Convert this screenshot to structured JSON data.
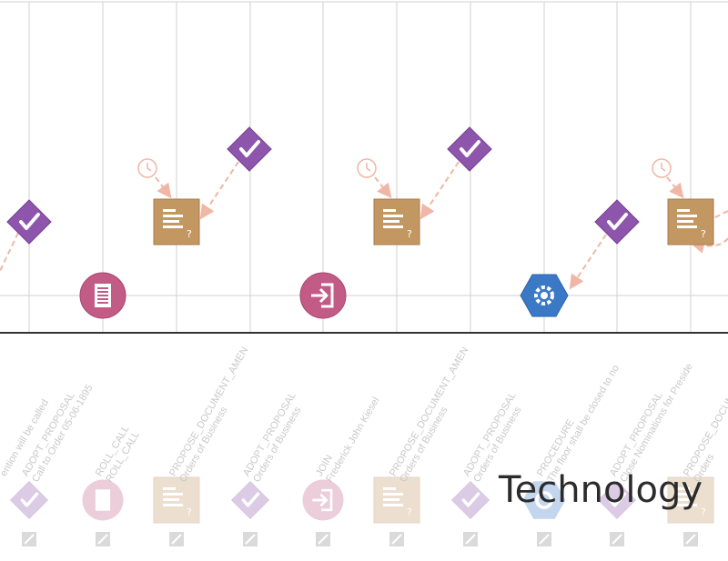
{
  "watermark": "Technology",
  "colors": {
    "vote": "#8e55ac",
    "document": "#c29762",
    "rollcall": "#c35b87",
    "procedure": "#3b79c7",
    "timer": "#f0b6a6"
  },
  "columns": [
    {
      "line1": "",
      "line2": "ention will be called",
      "icon": "vote-icon"
    },
    {
      "line1": "ADOPT_PROPOSAL",
      "line2": "Call to Order 05-06-1895",
      "icon": "vote-icon"
    },
    {
      "line1": "ROLL_CALL",
      "line2": "ROLL_CALL",
      "icon": "roll-call-icon"
    },
    {
      "line1": "PROPOSE_DOCUMENT_AMEN",
      "line2": "Orders of Business",
      "icon": "document-icon"
    },
    {
      "line1": "ADOPT_PROPOSAL",
      "line2": "Orders of Business",
      "icon": "vote-icon"
    },
    {
      "line1": "JOIN",
      "line2": "Frederick John Kiesel",
      "icon": "join-icon"
    },
    {
      "line1": "PROPOSE_DOCUMENT_AMEN",
      "line2": "Orders of Business",
      "icon": "document-icon"
    },
    {
      "line1": "ADOPT_PROPOSAL",
      "line2": "Orders of Business",
      "icon": "vote-icon"
    },
    {
      "line1": "PROCEDURE",
      "line2": "The floor shall be closed to no",
      "icon": "procedure-icon"
    },
    {
      "line1": "ADOPT_PROPOSAL",
      "line2": "Close Nominations for Preside",
      "icon": "vote-icon"
    },
    {
      "line1": "PROPOSE_DOCUMENT",
      "line2": "Orders",
      "icon": "document-icon"
    }
  ]
}
